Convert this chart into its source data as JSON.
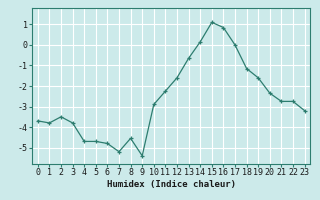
{
  "x": [
    0,
    1,
    2,
    3,
    4,
    5,
    6,
    7,
    8,
    9,
    10,
    11,
    12,
    13,
    14,
    15,
    16,
    17,
    18,
    19,
    20,
    21,
    22,
    23
  ],
  "y": [
    -3.7,
    -3.8,
    -3.5,
    -3.8,
    -4.7,
    -4.7,
    -4.8,
    -5.2,
    -4.55,
    -5.4,
    -2.9,
    -2.25,
    -1.6,
    -0.65,
    0.15,
    1.1,
    0.85,
    0.0,
    -1.15,
    -1.6,
    -2.35,
    -2.75,
    -2.75,
    -3.2
  ],
  "xlabel": "Humidex (Indice chaleur)",
  "xlim": [
    -0.5,
    23.5
  ],
  "ylim": [
    -5.8,
    1.8
  ],
  "yticks": [
    -5,
    -4,
    -3,
    -2,
    -1,
    0,
    1
  ],
  "xtick_labels": [
    "0",
    "1",
    "2",
    "3",
    "4",
    "5",
    "6",
    "7",
    "8",
    "9",
    "10",
    "11",
    "12",
    "13",
    "14",
    "15",
    "16",
    "17",
    "18",
    "19",
    "20",
    "21",
    "22",
    "23"
  ],
  "line_color": "#2d7d6f",
  "marker": "+",
  "bg_color": "#cceaea",
  "grid_color": "#ffffff",
  "axis_fontsize": 6.5,
  "tick_fontsize": 6.0
}
